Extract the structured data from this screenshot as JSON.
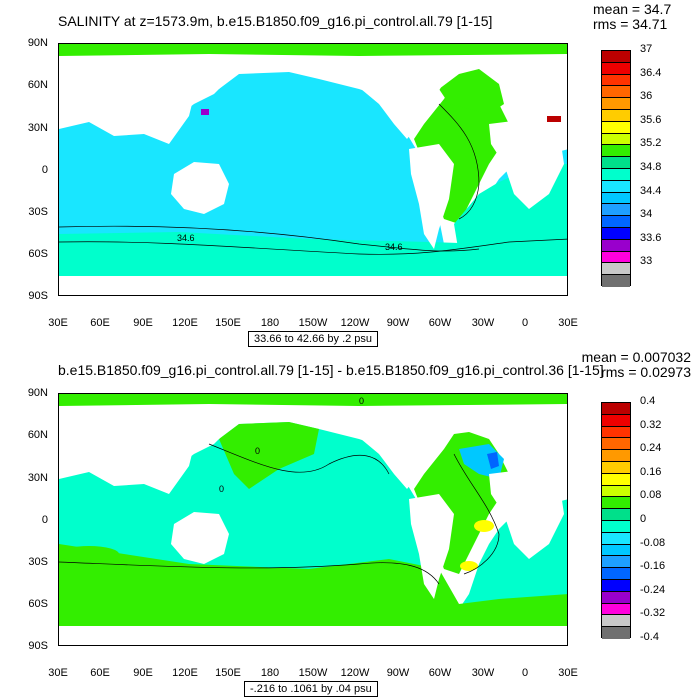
{
  "colors": {
    "c33": "#707070",
    "c33_2": "#c8c8c8",
    "c33_4": "#ff00dd",
    "c33_6": "#9900cc",
    "c33_8": "#0000ff",
    "c34": "#0066ff",
    "c34_2": "#1ea0ff",
    "c34_4": "#00c8ff",
    "c34_6": "#19e6ff",
    "c34_8": "#00ffcc",
    "c35": "#00e08a",
    "c35_2": "#33ee00",
    "c35_4": "#ccff00",
    "c35_6": "#ffff00",
    "c35_8": "#ffcc00",
    "c36": "#ff9900",
    "c36_2": "#ff6600",
    "c36_4": "#ff3300",
    "c36_6": "#ee0000",
    "c37": "#bb0000"
  },
  "lat_labels": [
    "90N",
    "60N",
    "30N",
    "0",
    "30S",
    "60S",
    "90S"
  ],
  "lon_labels": [
    "30E",
    "60E",
    "90E",
    "120E",
    "150E",
    "180",
    "150W",
    "120W",
    "90W",
    "60W",
    "30W",
    "0",
    "30E"
  ],
  "top": {
    "title": "SALINITY at z=1573.9m, b.e15.B1850.f09_g16.pi_control.all.79 [1-15]",
    "mean": "mean = 34.7",
    "rms": "rms = 34.71",
    "info": "33.66 to 42.66 by .2 psu",
    "contour_labels": [
      "34.6",
      "34.6"
    ],
    "colorbar": {
      "colors": [
        "#bb0000",
        "#ee0000",
        "#ff3300",
        "#ff6600",
        "#ff9900",
        "#ffcc00",
        "#ffff00",
        "#ccff00",
        "#33ee00",
        "#00e08a",
        "#00ffcc",
        "#19e6ff",
        "#00c8ff",
        "#1ea0ff",
        "#0066ff",
        "#0000ff",
        "#9900cc",
        "#ff00dd",
        "#c8c8c8",
        "#707070"
      ],
      "labels": [
        "37",
        "36.4",
        "36",
        "35.6",
        "35.2",
        "34.8",
        "34.4",
        "34",
        "33.6",
        "33"
      ]
    }
  },
  "bottom": {
    "title": "b.e15.B1850.f09_g16.pi_control.all.79 [1-15] - b.e15.B1850.f09_g16.pi_control.36 [1-15]",
    "mean": "mean = 0.007032",
    "rms": "rms = 0.02973",
    "info": "-.216 to .1061 by .04 psu",
    "contour_labels": [
      "0",
      "0",
      "0"
    ],
    "colorbar": {
      "colors": [
        "#bb0000",
        "#ee0000",
        "#ff3300",
        "#ff6600",
        "#ff9900",
        "#ffcc00",
        "#ffff00",
        "#ccff00",
        "#33ee00",
        "#00e08a",
        "#00ffcc",
        "#19e6ff",
        "#00c8ff",
        "#1ea0ff",
        "#0066ff",
        "#0000ff",
        "#9900cc",
        "#ff00dd",
        "#c8c8c8",
        "#707070"
      ],
      "labels": [
        "0.4",
        "0.32",
        "0.24",
        "0.16",
        "0.08",
        "0",
        "-0.08",
        "-0.16",
        "-0.24",
        "-0.32",
        "-0.4"
      ]
    }
  }
}
